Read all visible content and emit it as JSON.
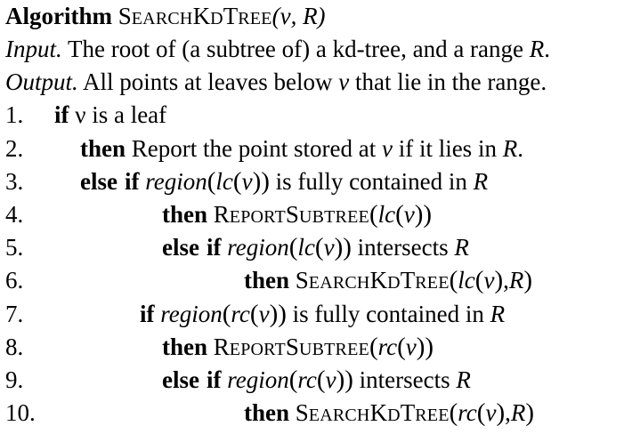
{
  "algorithm": {
    "keyword": "Algorithm",
    "name_parts": [
      "S",
      "EARCH",
      "K",
      "D",
      "T",
      "REE"
    ],
    "signature": "(ν, R)"
  },
  "input": {
    "label": "Input.",
    "text_before": " The root of (a subtree of) a kd-tree, and a range ",
    "range": "R",
    "text_after": "."
  },
  "output": {
    "label": "Output.",
    "text_before": " All points at leaves below ",
    "node": "ν",
    "text_after": " that lie in the range."
  },
  "lines": [
    {
      "number": "1.",
      "kw": "if",
      "text": " ν is a leaf"
    },
    {
      "number": "2.",
      "kw": "then",
      "text_before": " Report the point stored at ",
      "node": "ν",
      "text_after": " if it lies in ",
      "range": "R",
      "end": "."
    },
    {
      "number": "3.",
      "kw": "else",
      "kw2": "if",
      "fn": "region",
      "arg": "lc",
      "node": "ν",
      "text_after": " is fully contained in ",
      "range": "R"
    },
    {
      "number": "4.",
      "kw": "then",
      "call_parts": [
        "R",
        "EPORT",
        "S",
        "UBTREE"
      ],
      "arg": "lc",
      "node": "ν"
    },
    {
      "number": "5.",
      "kw": "else",
      "kw2": "if",
      "fn": "region",
      "arg": "lc",
      "node": "ν",
      "text_after": " intersects ",
      "range": "R"
    },
    {
      "number": "6.",
      "kw": "then",
      "call_parts": [
        "S",
        "EARCH",
        "K",
        "D",
        "T",
        "REE"
      ],
      "arg": "lc",
      "node": "ν",
      "range": "R"
    },
    {
      "number": "7.",
      "kw": "if",
      "fn": "region",
      "arg": "rc",
      "node": "ν",
      "text_after": " is fully contained in ",
      "range": "R"
    },
    {
      "number": "8.",
      "kw": "then",
      "call_parts": [
        "R",
        "EPORT",
        "S",
        "UBTREE"
      ],
      "arg": "rc",
      "node": "ν"
    },
    {
      "number": "9.",
      "kw": "else",
      "kw2": "if",
      "fn": "region",
      "arg": "rc",
      "node": "ν",
      "text_after": " intersects ",
      "range": "R"
    },
    {
      "number": "10.",
      "kw": "then",
      "call_parts": [
        "S",
        "EARCH",
        "K",
        "D",
        "T",
        "REE"
      ],
      "arg": "rc",
      "node": "ν",
      "range": "R"
    }
  ]
}
